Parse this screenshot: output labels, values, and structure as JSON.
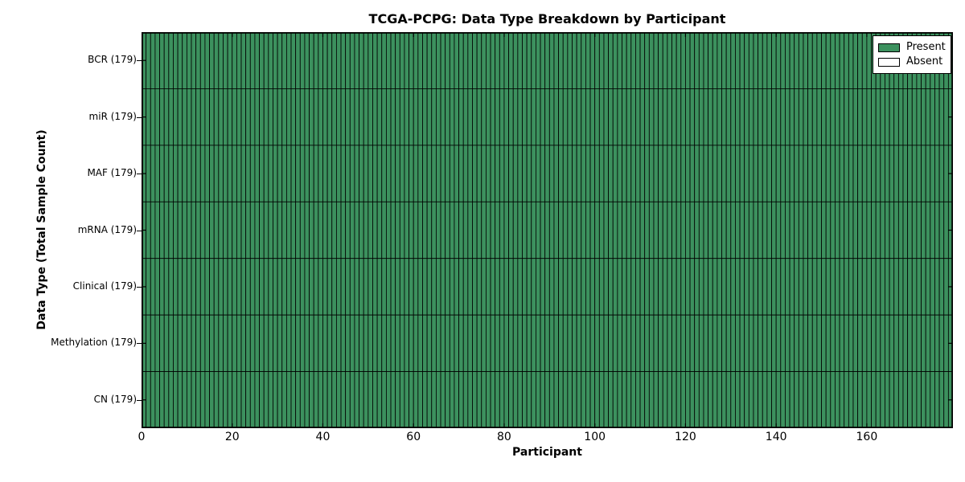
{
  "figure": {
    "title": "TCGA-PCPG: Data Type Breakdown by Participant",
    "xlabel": "Participant",
    "ylabel": "Data Type (Total Sample Count)",
    "background_color": "#ffffff"
  },
  "legend": {
    "position": "upper-right",
    "items": [
      {
        "label": "Present",
        "swatch_color": "#3c915e"
      },
      {
        "label": "Absent",
        "swatch_color": "#ffffff"
      }
    ]
  },
  "chart_data": {
    "type": "heatmap",
    "title": "TCGA-PCPG: Data Type Breakdown by Participant",
    "xlabel": "Participant",
    "ylabel": "Data Type (Total Sample Count)",
    "x_ticks": [
      0,
      20,
      40,
      60,
      80,
      100,
      120,
      140,
      160
    ],
    "x_range": [
      0,
      179
    ],
    "n_participants": 179,
    "rows": [
      {
        "label": "BCR (179)",
        "data_type": "BCR",
        "total_samples": 179,
        "present_participants": 179,
        "absent_participants": 0
      },
      {
        "label": "miR (179)",
        "data_type": "miR",
        "total_samples": 179,
        "present_participants": 179,
        "absent_participants": 0
      },
      {
        "label": "MAF (179)",
        "data_type": "MAF",
        "total_samples": 179,
        "present_participants": 179,
        "absent_participants": 0
      },
      {
        "label": "mRNA (179)",
        "data_type": "mRNA",
        "total_samples": 179,
        "present_participants": 179,
        "absent_participants": 0
      },
      {
        "label": "Clinical (179)",
        "data_type": "Clinical",
        "total_samples": 179,
        "present_participants": 179,
        "absent_participants": 0
      },
      {
        "label": "Methylation (179)",
        "data_type": "Methylation",
        "total_samples": 179,
        "present_participants": 179,
        "absent_participants": 0
      },
      {
        "label": "CN (179)",
        "data_type": "CN",
        "total_samples": 179,
        "present_participants": 179,
        "absent_participants": 0
      }
    ],
    "all_cells_present": true,
    "cell_present_color": "#3c915e",
    "cell_absent_color": "#ffffff",
    "cell_edge_color": "#000000",
    "grid": "cell-borders",
    "legend_entries": [
      "Present",
      "Absent"
    ],
    "legend_position": "upper-right"
  }
}
